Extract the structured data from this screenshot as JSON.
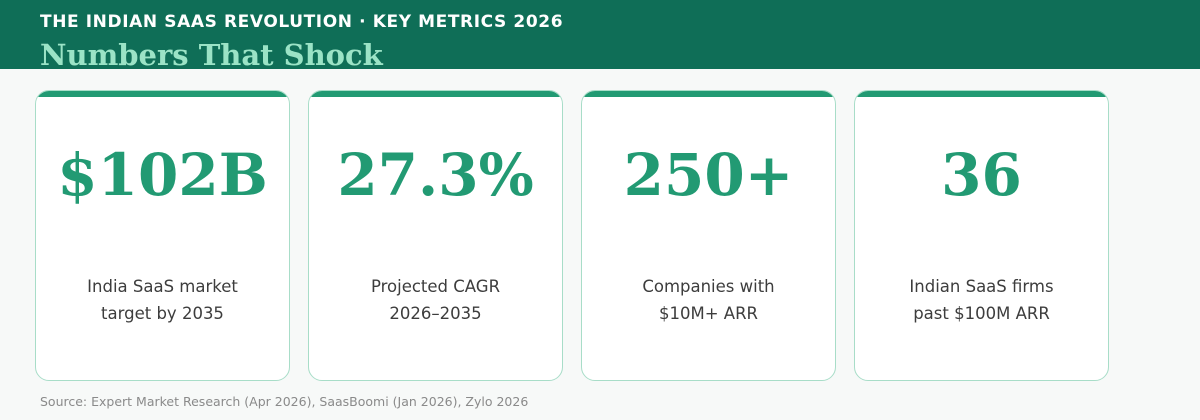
{
  "header": {
    "eyebrow": "THE INDIAN SAAS REVOLUTION · KEY METRICS 2026",
    "title": "Numbers That Shock",
    "colors": {
      "band": "#0f6e57",
      "title": "#9be3c6",
      "accent": "#229a73"
    }
  },
  "cards": [
    {
      "value": "$102B",
      "label_line1": "India SaaS market",
      "label_line2": "target by 2035"
    },
    {
      "value": "27.3%",
      "label_line1": "Projected CAGR",
      "label_line2": "2026–2035"
    },
    {
      "value": "250+",
      "label_line1": "Companies with",
      "label_line2": "$10M+ ARR"
    },
    {
      "value": "36",
      "label_line1": "Indian SaaS firms",
      "label_line2": "past $100M ARR"
    }
  ],
  "footer": {
    "source": "Source: Expert Market Research (Apr 2026), SaasBoomi (Jan 2026), Zylo 2026"
  }
}
